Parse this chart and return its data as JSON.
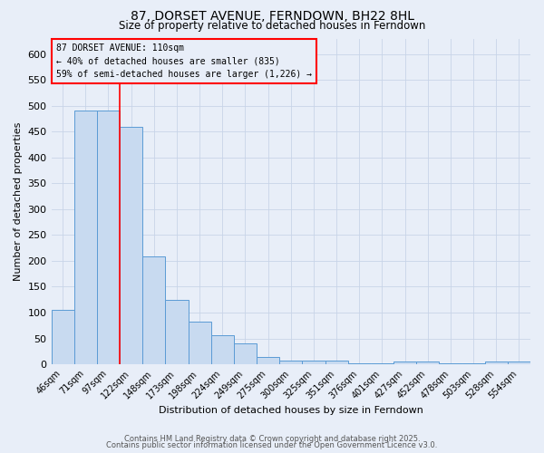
{
  "title": "87, DORSET AVENUE, FERNDOWN, BH22 8HL",
  "subtitle": "Size of property relative to detached houses in Ferndown",
  "xlabel": "Distribution of detached houses by size in Ferndown",
  "ylabel": "Number of detached properties",
  "categories": [
    "46sqm",
    "71sqm",
    "97sqm",
    "122sqm",
    "148sqm",
    "173sqm",
    "198sqm",
    "224sqm",
    "249sqm",
    "275sqm",
    "300sqm",
    "325sqm",
    "351sqm",
    "376sqm",
    "401sqm",
    "427sqm",
    "452sqm",
    "478sqm",
    "503sqm",
    "528sqm",
    "554sqm"
  ],
  "values": [
    105,
    490,
    490,
    460,
    208,
    125,
    83,
    57,
    40,
    15,
    8,
    8,
    8,
    2,
    2,
    5,
    5,
    2,
    2,
    5,
    5
  ],
  "bar_color": "#c8daf0",
  "bar_edge_color": "#5b9bd5",
  "vline_x": 3,
  "vline_color": "red",
  "ylim": [
    0,
    630
  ],
  "yticks": [
    0,
    50,
    100,
    150,
    200,
    250,
    300,
    350,
    400,
    450,
    500,
    550,
    600
  ],
  "annotation_text": "87 DORSET AVENUE: 110sqm\n← 40% of detached houses are smaller (835)\n59% of semi-detached houses are larger (1,226) →",
  "bg_color": "#e8eef8",
  "grid_color": "#c8d4e8",
  "footer_line1": "Contains HM Land Registry data © Crown copyright and database right 2025.",
  "footer_line2": "Contains public sector information licensed under the Open Government Licence v3.0."
}
